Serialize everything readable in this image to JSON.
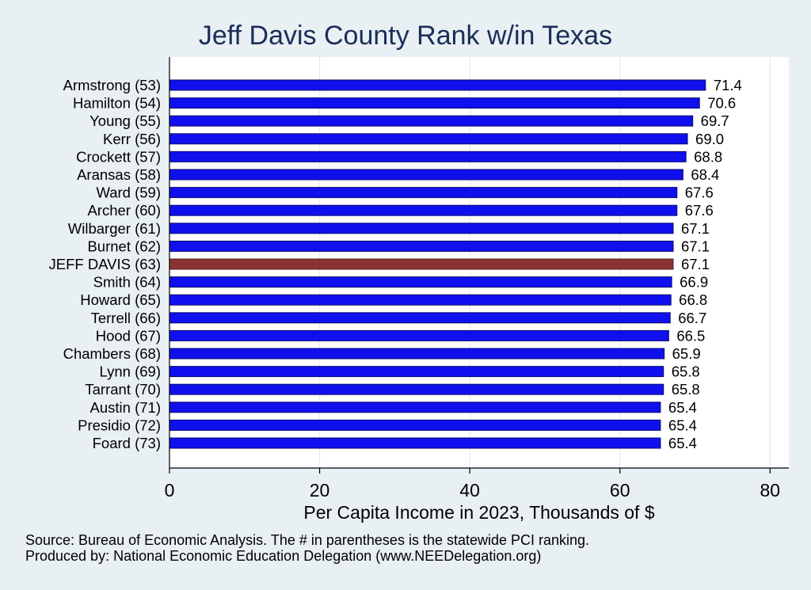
{
  "chart_data": {
    "type": "bar",
    "orientation": "horizontal",
    "title": "Jeff Davis County Rank w/in Texas",
    "xlabel": "Per Capita Income in 2023, Thousands of $",
    "ylabel": "",
    "xlim": [
      0,
      82.5
    ],
    "xticks": [
      0,
      20,
      40,
      60,
      80
    ],
    "grid": true,
    "categories": [
      "Armstrong (53)",
      "Hamilton (54)",
      "Young (55)",
      "Kerr (56)",
      "Crockett (57)",
      "Aransas (58)",
      "Ward (59)",
      "Archer (60)",
      "Wilbarger (61)",
      "Burnet (62)",
      "JEFF DAVIS (63)",
      "Smith (64)",
      "Howard (65)",
      "Terrell (66)",
      "Hood (67)",
      "Chambers (68)",
      "Lynn (69)",
      "Tarrant (70)",
      "Austin (71)",
      "Presidio (72)",
      "Foard (73)"
    ],
    "values": [
      71.4,
      70.6,
      69.7,
      69.0,
      68.8,
      68.4,
      67.6,
      67.6,
      67.1,
      67.1,
      67.1,
      66.9,
      66.8,
      66.7,
      66.5,
      65.9,
      65.8,
      65.8,
      65.4,
      65.4,
      65.4
    ],
    "value_labels": [
      "71.4",
      "70.6",
      "69.7",
      "69.0",
      "68.8",
      "68.4",
      "67.6",
      "67.6",
      "67.1",
      "67.1",
      "67.1",
      "66.9",
      "66.8",
      "66.7",
      "66.5",
      "65.9",
      "65.8",
      "65.8",
      "65.4",
      "65.4",
      "65.4"
    ],
    "highlight_category": "JEFF DAVIS (63)",
    "colors": {
      "bar": "#1010ee",
      "bar_edge": "#0a0a6e",
      "highlight": "#8b3333",
      "highlight_edge": "#5a1f1f",
      "plot_background": "#ffffff",
      "page_background": "#e9f0f3",
      "grid": "#e6ebef",
      "title": "#1a2e5a"
    }
  },
  "footer": {
    "source": "Source: Bureau of Economic Analysis. The # in parentheses is the statewide PCI ranking.",
    "producer": "Produced by: National Economic Education Delegation (www.NEEDelegation.org)"
  }
}
